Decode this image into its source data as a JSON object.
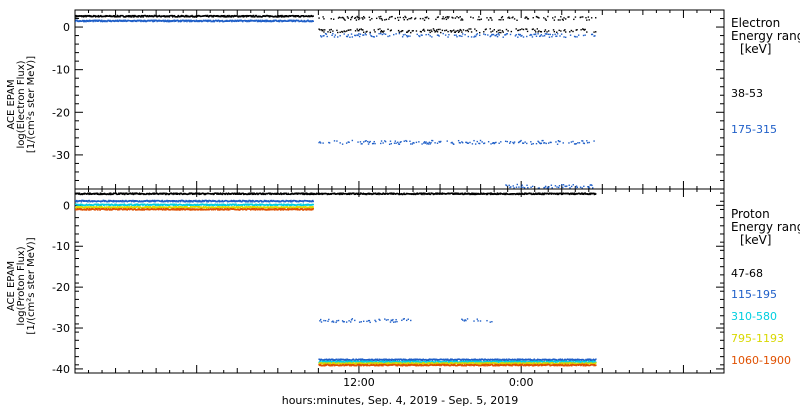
{
  "x_axis": {
    "title": "hours:minutes, Sep.  4, 2019 - Sep.  5, 2019",
    "ticks": [
      "12:00",
      "0:00"
    ]
  },
  "chart_data": [
    {
      "type": "scatter",
      "ylabel": [
        "ACE EPAM",
        "log(Electron Flux)",
        "[1/(cm²s ster MeV)]"
      ],
      "ylim": [
        -38,
        4
      ],
      "yticks": [
        0,
        -10,
        -20,
        -30
      ],
      "xlim_hours": [
        -9,
        39
      ],
      "legend": {
        "heading": [
          "Electron",
          "Energy ranges",
          "[keV]"
        ],
        "placement": "right",
        "entries": [
          {
            "label": "38-53",
            "color": "#000000"
          },
          {
            "label": "175-315",
            "color": "#1f5fc8"
          }
        ]
      },
      "series": [
        {
          "color": "#000000",
          "segments": [
            {
              "x": [
                -9,
                8.6
              ],
              "y": 2.7,
              "density": "continuous"
            },
            {
              "x": [
                9.0,
                29.5
              ],
              "y": 2.2,
              "density": "sparse"
            },
            {
              "x": [
                9.0,
                29.5
              ],
              "y": -0.7,
              "density": "sparse"
            }
          ]
        },
        {
          "color": "#1f5fc8",
          "segments": [
            {
              "x": [
                -9,
                8.6
              ],
              "y": 1.6,
              "density": "continuous"
            },
            {
              "x": [
                9.0,
                29.5
              ],
              "y": -1.8,
              "density": "sparse"
            },
            {
              "x": [
                9.0,
                29.5
              ],
              "y": -26.9,
              "density": "sparse"
            },
            {
              "x": [
                22.7,
                29.3
              ],
              "y": -37.2,
              "density": "sparse"
            }
          ]
        }
      ]
    },
    {
      "type": "scatter",
      "ylabel": [
        "ACE EPAM",
        "log(Proton Flux)",
        "[1/(cm²s ster MeV)]"
      ],
      "ylim": [
        -41,
        4
      ],
      "yticks": [
        0,
        -10,
        -20,
        -30,
        -40
      ],
      "xlim_hours": [
        -9,
        39
      ],
      "legend": {
        "heading": [
          "Proton",
          "Energy ranges",
          "[keV]"
        ],
        "placement": "right",
        "entries": [
          {
            "label": "47-68",
            "color": "#000000"
          },
          {
            "label": "115-195",
            "color": "#1f5fc8"
          },
          {
            "label": "310-580",
            "color": "#00cfe0"
          },
          {
            "label": "795-1193",
            "color": "#d8d800"
          },
          {
            "label": "1060-1900",
            "color": "#e05000"
          }
        ]
      },
      "series": [
        {
          "color": "#000000",
          "segments": [
            {
              "x": [
                -9,
                29.5
              ],
              "y": 3.0,
              "density": "continuous"
            }
          ]
        },
        {
          "color": "#1f5fc8",
          "segments": [
            {
              "x": [
                -9,
                8.6
              ],
              "y": 1.2,
              "density": "continuous"
            },
            {
              "x": [
                9.0,
                16.0
              ],
              "y": -28.0,
              "density": "sparse"
            },
            {
              "x": [
                19.5,
                21.8
              ],
              "y": -28.0,
              "density": "sparse"
            },
            {
              "x": [
                9.0,
                29.5
              ],
              "y": -37.6,
              "density": "continuous"
            }
          ]
        },
        {
          "color": "#00cfe0",
          "segments": [
            {
              "x": [
                -9,
                8.6
              ],
              "y": 0.3,
              "density": "continuous"
            },
            {
              "x": [
                9.0,
                29.5
              ],
              "y": -38.1,
              "density": "continuous"
            }
          ]
        },
        {
          "color": "#d8d800",
          "segments": [
            {
              "x": [
                -9,
                8.6
              ],
              "y": -0.3,
              "density": "continuous"
            },
            {
              "x": [
                9.0,
                29.5
              ],
              "y": -38.5,
              "density": "continuous"
            }
          ]
        },
        {
          "color": "#e05000",
          "segments": [
            {
              "x": [
                -9,
                8.6
              ],
              "y": -0.8,
              "density": "continuous"
            },
            {
              "x": [
                9.0,
                29.5
              ],
              "y": -38.9,
              "density": "continuous"
            }
          ]
        }
      ]
    }
  ]
}
